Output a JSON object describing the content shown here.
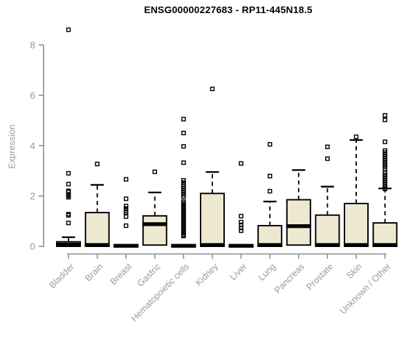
{
  "chart_data": {
    "type": "boxplot",
    "title": "ENSG00000227683 - RP11-445N18.5",
    "ylabel": "Expression",
    "xlabel": "",
    "ylim": [
      0,
      8.8
    ],
    "yticks": [
      0,
      2,
      4,
      6,
      8
    ],
    "grid": false,
    "legend": "none",
    "categories": [
      "Bladder",
      "Brain",
      "Breast",
      "Gastric",
      "Hematopoietic cells",
      "Kidney",
      "Liver",
      "Lung",
      "Pancreas",
      "Prostate",
      "Skin",
      "Unknown / Other"
    ],
    "series": [
      {
        "name": "Bladder",
        "q1": 0,
        "median": 0.07,
        "q3": 0.18,
        "whisker_low": 0,
        "whisker_high": 0.36,
        "outliers": [
          8.6,
          2.9,
          2.47,
          2.2,
          2.16,
          2.05,
          2.0,
          1.95,
          1.28,
          1.23,
          0.93
        ]
      },
      {
        "name": "Brain",
        "q1": 0,
        "median": 0.05,
        "q3": 1.34,
        "whisker_low": 0,
        "whisker_high": 2.44,
        "outliers": [
          3.27
        ]
      },
      {
        "name": "Breast",
        "q1": 0,
        "median": 0.02,
        "q3": 0.02,
        "whisker_low": 0,
        "whisker_high": 0.02,
        "outliers": [
          2.66,
          1.89,
          1.6,
          1.5,
          1.42,
          1.35,
          1.18,
          0.82
        ]
      },
      {
        "name": "Gastric",
        "q1": 0.05,
        "median": 0.88,
        "q3": 1.21,
        "whisker_low": 0.05,
        "whisker_high": 2.14,
        "outliers": [
          2.96
        ]
      },
      {
        "name": "Hematopoietic cells",
        "q1": 0,
        "median": 0.02,
        "q3": 0.03,
        "whisker_low": 0,
        "whisker_high": 0.03,
        "outliers": [
          5.05,
          4.5,
          3.97,
          3.32,
          2.62,
          2.53,
          2.45,
          2.38,
          2.3,
          2.22,
          2.14,
          2.06,
          1.98,
          1.78,
          1.72,
          1.66,
          1.6,
          1.54,
          1.48,
          1.42,
          1.36,
          1.3,
          1.24,
          1.18,
          1.12,
          1.06,
          1.0,
          0.94,
          0.88,
          0.82,
          0.76,
          0.7,
          0.64,
          0.58,
          0.52,
          0.46,
          0.41
        ]
      },
      {
        "name": "Kidney",
        "q1": 0,
        "median": 0.05,
        "q3": 2.1,
        "whisker_low": 0,
        "whisker_high": 2.95,
        "outliers": [
          6.25
        ]
      },
      {
        "name": "Liver",
        "q1": 0,
        "median": 0.02,
        "q3": 0.02,
        "whisker_low": 0,
        "whisker_high": 0.02,
        "outliers": [
          3.29,
          1.2,
          0.96,
          0.85,
          0.73,
          0.62
        ]
      },
      {
        "name": "Lung",
        "q1": 0,
        "median": 0.05,
        "q3": 0.82,
        "whisker_low": 0,
        "whisker_high": 1.78,
        "outliers": [
          4.05,
          2.79,
          2.19
        ]
      },
      {
        "name": "Pancreas",
        "q1": 0.05,
        "median": 0.8,
        "q3": 1.85,
        "whisker_low": 0.05,
        "whisker_high": 3.03,
        "outliers": []
      },
      {
        "name": "Prostate",
        "q1": 0,
        "median": 0.05,
        "q3": 1.24,
        "whisker_low": 0,
        "whisker_high": 2.37,
        "outliers": [
          3.95,
          3.48
        ]
      },
      {
        "name": "Skin",
        "q1": 0,
        "median": 0.05,
        "q3": 1.7,
        "whisker_low": 0,
        "whisker_high": 4.22,
        "outliers": [
          4.35
        ]
      },
      {
        "name": "Unknown / Other",
        "q1": 0,
        "median": 0.05,
        "q3": 0.93,
        "whisker_low": 0,
        "whisker_high": 2.3,
        "outliers": [
          5.2,
          5.02,
          4.15,
          3.8,
          3.72,
          3.64,
          3.56,
          3.48,
          3.4,
          3.32,
          3.24,
          3.16,
          3.08,
          2.92,
          2.84,
          2.76,
          2.68,
          2.6,
          2.52,
          2.44,
          2.36,
          2.28
        ]
      }
    ],
    "colors": {
      "box_fill": "#EDE8D0",
      "box_stroke": "#000000",
      "median": "#000000",
      "whisker": "#000000",
      "outlier_stroke": "#000000",
      "axis": "#8c8c8c",
      "tick_label": "#9a9a9a",
      "title": "#000000"
    }
  }
}
